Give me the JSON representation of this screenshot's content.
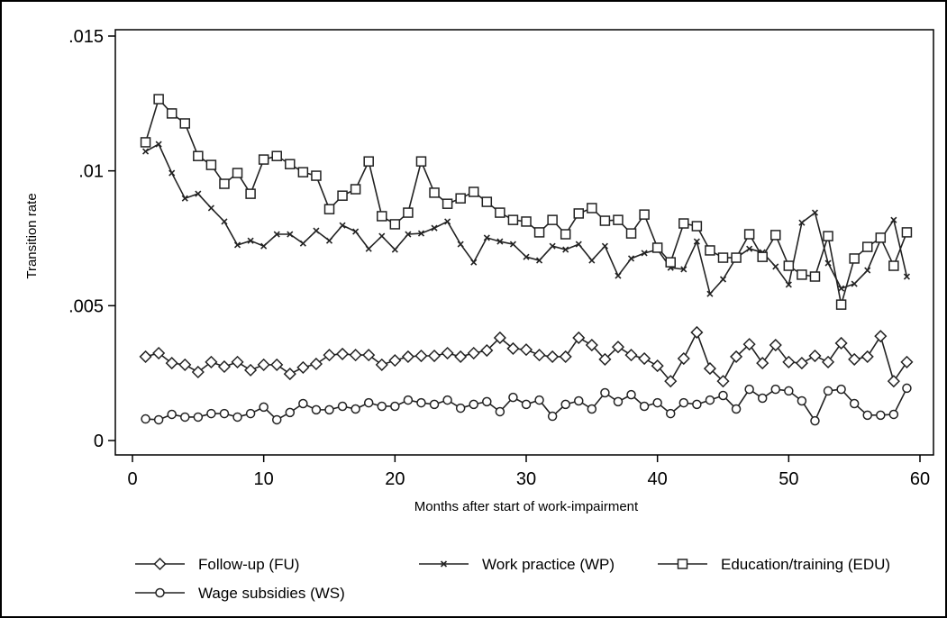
{
  "chart_data": {
    "type": "line",
    "x_label": "Months after start of work-impairment",
    "y_label": "Transition rate",
    "xlim": [
      0,
      60
    ],
    "xticks": [
      0,
      10,
      20,
      30,
      40,
      50,
      60
    ],
    "ylim": [
      0,
      0.015
    ],
    "yticks": [
      0,
      {
        "value": 0.005,
        "label": ".005"
      },
      {
        "value": 0.01,
        "label": ".01"
      },
      {
        "value": 0.015,
        "label": ".015"
      }
    ],
    "x": [
      1,
      2,
      3,
      4,
      5,
      6,
      7,
      8,
      9,
      10,
      11,
      12,
      13,
      14,
      15,
      16,
      17,
      18,
      19,
      20,
      21,
      22,
      23,
      24,
      25,
      26,
      27,
      28,
      29,
      30,
      31,
      32,
      33,
      34,
      35,
      36,
      37,
      38,
      39,
      40,
      41,
      42,
      43,
      44,
      45,
      46,
      47,
      48,
      49,
      50,
      51,
      52,
      53,
      54,
      55,
      56,
      57,
      58,
      59
    ],
    "series": [
      {
        "name": "Follow-up (FU)",
        "marker": "diamond",
        "color": "#222",
        "values": [
          0.00311,
          0.00324,
          0.00287,
          0.00281,
          0.00254,
          0.00291,
          0.00274,
          0.00291,
          0.00261,
          0.00281,
          0.00281,
          0.00247,
          0.00271,
          0.00284,
          0.00317,
          0.00321,
          0.00317,
          0.00317,
          0.00281,
          0.00297,
          0.00311,
          0.00314,
          0.00314,
          0.00324,
          0.00311,
          0.00324,
          0.00334,
          0.00381,
          0.00341,
          0.00337,
          0.00317,
          0.00311,
          0.00311,
          0.00381,
          0.00354,
          0.00301,
          0.00347,
          0.00317,
          0.00304,
          0.00277,
          0.0022,
          0.00304,
          0.00401,
          0.00267,
          0.0022,
          0.00311,
          0.00357,
          0.00287,
          0.00354,
          0.00291,
          0.00287,
          0.00314,
          0.00291,
          0.00361,
          0.00301,
          0.00311,
          0.00387,
          0.0022,
          0.00291
        ]
      },
      {
        "name": "Work practice (WP)",
        "marker": "x",
        "color": "#222",
        "values": [
          0.01072,
          0.01099,
          0.00992,
          0.00898,
          0.00915,
          0.00862,
          0.00812,
          0.00725,
          0.00741,
          0.00721,
          0.00765,
          0.00765,
          0.00731,
          0.00778,
          0.00741,
          0.00798,
          0.00775,
          0.00711,
          0.00758,
          0.00708,
          0.00765,
          0.00768,
          0.00788,
          0.00812,
          0.00728,
          0.00661,
          0.00752,
          0.00738,
          0.00728,
          0.00681,
          0.00668,
          0.00721,
          0.00708,
          0.00728,
          0.00668,
          0.00721,
          0.00611,
          0.00675,
          0.00695,
          0.00708,
          0.00641,
          0.00635,
          0.00738,
          0.00544,
          0.00598,
          0.00678,
          0.00711,
          0.00698,
          0.00645,
          0.00578,
          0.00808,
          0.00845,
          0.00658,
          0.00564,
          0.00581,
          0.00631,
          0.00745,
          0.00818,
          0.00608
        ]
      },
      {
        "name": "Education/training (EDU)",
        "marker": "square",
        "color": "#222",
        "values": [
          0.01106,
          0.01266,
          0.01213,
          0.01176,
          0.01055,
          0.01022,
          0.00952,
          0.00992,
          0.00915,
          0.01042,
          0.01055,
          0.01025,
          0.00995,
          0.00982,
          0.00858,
          0.00908,
          0.00932,
          0.01035,
          0.00832,
          0.00802,
          0.00845,
          0.01035,
          0.00919,
          0.00878,
          0.00898,
          0.00922,
          0.00885,
          0.00845,
          0.00818,
          0.00812,
          0.00772,
          0.00818,
          0.00765,
          0.00842,
          0.00862,
          0.00815,
          0.00818,
          0.00768,
          0.00838,
          0.00715,
          0.00661,
          0.00805,
          0.00795,
          0.00705,
          0.00678,
          0.00678,
          0.00765,
          0.00681,
          0.00762,
          0.00648,
          0.00615,
          0.00608,
          0.00758,
          0.00504,
          0.00675,
          0.00718,
          0.00752,
          0.00648,
          0.00772
        ]
      },
      {
        "name": "Wage subsidies (WS)",
        "marker": "circle",
        "color": "#222",
        "values": [
          0.0008,
          0.00077,
          0.00097,
          0.00087,
          0.00087,
          0.001,
          0.001,
          0.00087,
          0.001,
          0.00124,
          0.00077,
          0.00104,
          0.00137,
          0.00114,
          0.00114,
          0.00127,
          0.00117,
          0.0014,
          0.00127,
          0.00127,
          0.0015,
          0.0014,
          0.00134,
          0.0015,
          0.0012,
          0.00134,
          0.00144,
          0.00107,
          0.0016,
          0.00134,
          0.0015,
          0.0009,
          0.00134,
          0.00147,
          0.00117,
          0.00177,
          0.00144,
          0.0017,
          0.00127,
          0.0014,
          0.001,
          0.0014,
          0.00134,
          0.0015,
          0.00167,
          0.00117,
          0.0019,
          0.00157,
          0.0019,
          0.00184,
          0.00147,
          0.00073,
          0.00184,
          0.0019,
          0.00137,
          0.00094,
          0.00094,
          0.00097,
          0.00194
        ]
      }
    ]
  }
}
